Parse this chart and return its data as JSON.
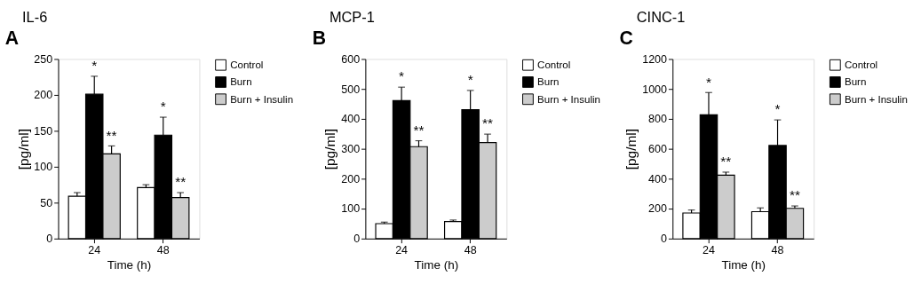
{
  "chart_data": [
    {
      "type": "bar",
      "title": "IL-6",
      "annotations": [
        "A"
      ],
      "xlabel": "Time (h)",
      "ylabel": "[pg/ml]",
      "categories": [
        "24",
        "48"
      ],
      "ylim": [
        0,
        250
      ],
      "yticks": [
        0,
        50,
        100,
        150,
        200,
        250
      ],
      "grid": false,
      "legend": "right",
      "series": [
        {
          "name": "Control",
          "color": "#ffffff",
          "values": [
            59,
            71
          ],
          "errors": [
            [
              59,
              64
            ],
            [
              71,
              75
            ]
          ]
        },
        {
          "name": "Burn",
          "color": "#000000",
          "values": [
            201,
            144
          ],
          "errors": [
            [
              201,
              226
            ],
            [
              144,
              169
            ]
          ],
          "value_labels": [
            "*",
            "*"
          ]
        },
        {
          "name": "Burn + Insulin",
          "color": "#cccccc",
          "values": [
            118,
            57
          ],
          "errors": [
            [
              118,
              129
            ],
            [
              57,
              64
            ]
          ],
          "value_labels": [
            "**",
            "**"
          ]
        }
      ]
    },
    {
      "type": "bar",
      "title": "MCP-1",
      "annotations": [
        "B"
      ],
      "xlabel": "Time (h)",
      "ylabel": "[pg/ml]",
      "categories": [
        "24",
        "48"
      ],
      "ylim": [
        0,
        600
      ],
      "yticks": [
        0,
        100,
        200,
        300,
        400,
        500,
        600
      ],
      "grid": false,
      "legend": "right",
      "series": [
        {
          "name": "Control",
          "color": "#ffffff",
          "values": [
            50,
            57
          ],
          "errors": [
            [
              50,
              55
            ],
            [
              57,
              62
            ]
          ]
        },
        {
          "name": "Burn",
          "color": "#000000",
          "values": [
            461,
            431
          ],
          "errors": [
            [
              461,
              506
            ],
            [
              431,
              495
            ]
          ],
          "value_labels": [
            "*",
            "*"
          ]
        },
        {
          "name": "Burn + Insulin",
          "color": "#cccccc",
          "values": [
            307,
            321
          ],
          "errors": [
            [
              307,
              327
            ],
            [
              321,
              349
            ]
          ],
          "value_labels": [
            "**",
            "**"
          ]
        }
      ]
    },
    {
      "type": "bar",
      "title": "CINC-1",
      "annotations": [
        "C"
      ],
      "xlabel": "Time (h)",
      "ylabel": "[pg/ml]",
      "categories": [
        "24",
        "48"
      ],
      "ylim": [
        0,
        1200
      ],
      "yticks": [
        0,
        200,
        400,
        600,
        800,
        1000,
        1200
      ],
      "grid": false,
      "legend": "right",
      "series": [
        {
          "name": "Control",
          "color": "#ffffff",
          "values": [
            171,
            180
          ],
          "errors": [
            [
              171,
              191
            ],
            [
              180,
              205
            ]
          ]
        },
        {
          "name": "Burn",
          "color": "#000000",
          "values": [
            827,
            622
          ],
          "errors": [
            [
              827,
              976
            ],
            [
              622,
              793
            ]
          ],
          "value_labels": [
            "*",
            "*"
          ]
        },
        {
          "name": "Burn + Insulin",
          "color": "#cccccc",
          "values": [
            424,
            202
          ],
          "errors": [
            [
              424,
              444
            ],
            [
              202,
              218
            ]
          ],
          "value_labels": [
            "**",
            "**"
          ]
        }
      ]
    }
  ]
}
